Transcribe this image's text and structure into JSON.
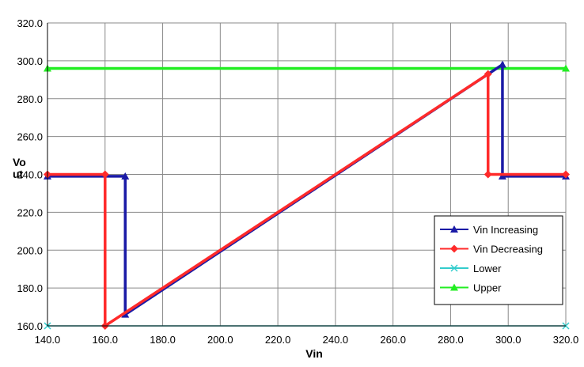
{
  "chart_data": {
    "type": "line",
    "title": "",
    "xlabel": "Vin",
    "ylabel": "Vout",
    "xlim": [
      140,
      320
    ],
    "ylim": [
      160,
      320
    ],
    "xticks": [
      "140.0",
      "160.0",
      "180.0",
      "200.0",
      "220.0",
      "240.0",
      "260.0",
      "280.0",
      "300.0",
      "320.0"
    ],
    "yticks": [
      "160.0",
      "180.0",
      "200.0",
      "220.0",
      "240.0",
      "260.0",
      "280.0",
      "300.0",
      "320.0"
    ],
    "grid": true,
    "legend_position": "bottom-right",
    "series": [
      {
        "name": "Vin Increasing",
        "color": "#1a1aa6",
        "marker": "triangle",
        "x": [
          140,
          167,
          167,
          298,
          298,
          320
        ],
        "y": [
          239,
          239,
          166,
          298,
          239,
          239
        ]
      },
      {
        "name": "Vin Decreasing",
        "color": "#ff2a2a",
        "marker": "diamond",
        "x": [
          320,
          293,
          293,
          160,
          160,
          140
        ],
        "y": [
          240,
          240,
          293,
          160,
          240,
          240
        ]
      },
      {
        "name": "Lower",
        "color": "#33cccc",
        "marker": "x",
        "x": [
          140,
          320
        ],
        "y": [
          160,
          160
        ]
      },
      {
        "name": "Upper",
        "color": "#22ee22",
        "marker": "triangle",
        "x": [
          140,
          320
        ],
        "y": [
          296,
          296
        ]
      }
    ]
  }
}
